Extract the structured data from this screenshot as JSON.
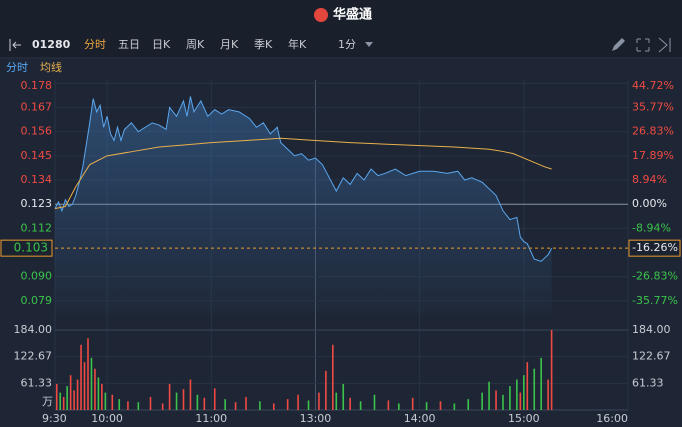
{
  "app": {
    "logo": "华盛通",
    "code": "01280",
    "tabs": [
      "分时",
      "五日",
      "日K",
      "周K",
      "月K",
      "季K",
      "年K"
    ],
    "interval": "1分"
  },
  "chart_data": {
    "type": "intraday",
    "xlim": [
      0,
      330
    ],
    "xticks": [
      {
        "value": 0,
        "label": "9:30"
      },
      {
        "value": 30,
        "label": "10:00"
      },
      {
        "value": 90,
        "label": "11:00"
      },
      {
        "value": 150,
        "label": "13:00"
      },
      {
        "value": 210,
        "label": "14:00"
      },
      {
        "value": 270,
        "label": "15:00"
      },
      {
        "value": 330,
        "label": "16:00"
      }
    ],
    "ylim": [
      0.0735,
      0.1795
    ],
    "yticks": [
      0.178,
      0.167,
      0.156,
      0.145,
      0.134,
      0.123,
      0.112,
      {
        "value": 0.09,
        "label": "0.090"
      },
      0.079
    ],
    "y2lim": [
      -40.24,
      45.93
    ],
    "y2ticks": [
      {
        "value": 44.72,
        "label": "44.72%"
      },
      {
        "value": 35.77,
        "label": "35.77%"
      },
      {
        "value": 26.83,
        "label": "26.83%"
      },
      {
        "value": 17.89,
        "label": "17.89%"
      },
      {
        "value": 8.94,
        "label": "8.94%"
      },
      {
        "value": 0,
        "label": "0.00%"
      },
      {
        "value": -8.94,
        "label": "-8.94%"
      },
      {
        "value": -26.83,
        "label": "-26.83%"
      },
      {
        "value": -35.77,
        "label": "-35.77%"
      }
    ],
    "prev_close": 0.123,
    "current": 0.103,
    "current_pct": {
      "value": -16.26,
      "label": "-16.26%"
    },
    "up_color": "#f04a43",
    "down_color": "#3bc34b",
    "series": [
      {
        "name": "分时",
        "color": "#5aa7f0",
        "x": [
          0,
          2,
          4,
          6,
          8,
          10,
          12,
          14,
          16,
          18,
          20,
          22,
          24,
          26,
          28,
          30,
          32,
          34,
          36,
          38,
          40,
          44,
          48,
          52,
          56,
          60,
          64,
          66,
          70,
          74,
          76,
          78,
          80,
          84,
          88,
          92,
          96,
          100,
          106,
          112,
          116,
          120,
          124,
          128,
          130,
          134,
          138,
          142,
          146,
          150,
          154,
          158,
          162,
          166,
          170,
          174,
          178,
          182,
          186,
          190,
          196,
          202,
          210,
          218,
          226,
          232,
          236,
          240,
          246,
          250,
          254,
          258,
          262,
          266,
          268,
          270,
          272,
          276,
          280,
          284,
          286
        ],
        "values": [
          0.121,
          0.124,
          0.12,
          0.125,
          0.122,
          0.123,
          0.127,
          0.133,
          0.14,
          0.15,
          0.16,
          0.171,
          0.165,
          0.168,
          0.158,
          0.163,
          0.155,
          0.152,
          0.158,
          0.152,
          0.157,
          0.16,
          0.156,
          0.158,
          0.16,
          0.159,
          0.157,
          0.167,
          0.163,
          0.17,
          0.163,
          0.172,
          0.165,
          0.17,
          0.163,
          0.166,
          0.164,
          0.166,
          0.165,
          0.162,
          0.158,
          0.16,
          0.155,
          0.158,
          0.151,
          0.148,
          0.145,
          0.146,
          0.143,
          0.144,
          0.141,
          0.135,
          0.129,
          0.135,
          0.132,
          0.137,
          0.134,
          0.139,
          0.136,
          0.137,
          0.139,
          0.136,
          0.138,
          0.138,
          0.137,
          0.138,
          0.134,
          0.135,
          0.133,
          0.13,
          0.127,
          0.12,
          0.116,
          0.117,
          0.108,
          0.106,
          0.105,
          0.098,
          0.097,
          0.1,
          0.103
        ]
      },
      {
        "name": "均线",
        "color": "#e9b04c",
        "x": [
          0,
          6,
          12,
          20,
          30,
          45,
          60,
          75,
          90,
          110,
          130,
          150,
          170,
          200,
          230,
          250,
          258,
          264,
          270,
          276,
          282,
          286
        ],
        "values": [
          0.121,
          0.122,
          0.131,
          0.141,
          0.145,
          0.147,
          0.149,
          0.15,
          0.151,
          0.152,
          0.153,
          0.152,
          0.151,
          0.15,
          0.149,
          0.148,
          0.147,
          0.146,
          0.144,
          0.142,
          0.14,
          0.139
        ]
      }
    ],
    "volume": {
      "ylim": [
        0,
        184
      ],
      "unit": "万",
      "yticks": [
        {
          "value": 184,
          "label": "184.00"
        },
        {
          "value": 122.67,
          "label": "122.67"
        },
        {
          "value": 61.33,
          "label": "61.33"
        }
      ],
      "x": [
        1,
        3,
        5,
        7,
        9,
        11,
        13,
        15,
        17,
        19,
        21,
        23,
        25,
        27,
        29,
        33,
        37,
        42,
        48,
        55,
        62,
        66,
        70,
        74,
        78,
        82,
        86,
        92,
        98,
        104,
        110,
        118,
        126,
        134,
        140,
        146,
        152,
        156,
        160,
        162,
        166,
        170,
        176,
        184,
        192,
        198,
        206,
        214,
        222,
        230,
        238,
        246,
        250,
        254,
        258,
        262,
        266,
        268,
        270,
        272,
        276,
        280,
        284,
        286
      ],
      "values": [
        60,
        40,
        30,
        55,
        80,
        45,
        70,
        150,
        110,
        165,
        120,
        95,
        75,
        60,
        40,
        35,
        25,
        20,
        18,
        30,
        15,
        60,
        40,
        48,
        70,
        35,
        28,
        50,
        25,
        18,
        30,
        20,
        15,
        25,
        35,
        22,
        40,
        90,
        150,
        40,
        60,
        28,
        20,
        35,
        22,
        15,
        28,
        18,
        20,
        15,
        25,
        40,
        65,
        45,
        35,
        55,
        70,
        40,
        80,
        110,
        95,
        120,
        70,
        184
      ],
      "colors": [
        "#f04a43",
        "#3bc34b",
        "#f04a43",
        "#3bc34b",
        "#f04a43",
        "#f04a43",
        "#f04a43",
        "#f04a43",
        "#f04a43",
        "#f04a43",
        "#3bc34b",
        "#f04a43",
        "#3bc34b",
        "#f04a43",
        "#3bc34b",
        "#f04a43",
        "#3bc34b",
        "#f04a43",
        "#3bc34b",
        "#f04a43",
        "#f04a43",
        "#f04a43",
        "#3bc34b",
        "#f04a43",
        "#f04a43",
        "#3bc34b",
        "#f04a43",
        "#f04a43",
        "#3bc34b",
        "#f04a43",
        "#f04a43",
        "#3bc34b",
        "#f04a43",
        "#f04a43",
        "#f04a43",
        "#3bc34b",
        "#f04a43",
        "#f04a43",
        "#f04a43",
        "#3bc34b",
        "#3bc34b",
        "#f04a43",
        "#3bc34b",
        "#3bc34b",
        "#f04a43",
        "#3bc34b",
        "#f04a43",
        "#3bc34b",
        "#f04a43",
        "#3bc34b",
        "#3bc34b",
        "#3bc34b",
        "#3bc34b",
        "#f04a43",
        "#3bc34b",
        "#3bc34b",
        "#3bc34b",
        "#f04a43",
        "#3bc34b",
        "#f04a43",
        "#3bc34b",
        "#3bc34b",
        "#f04a43",
        "#f04a43"
      ]
    }
  }
}
